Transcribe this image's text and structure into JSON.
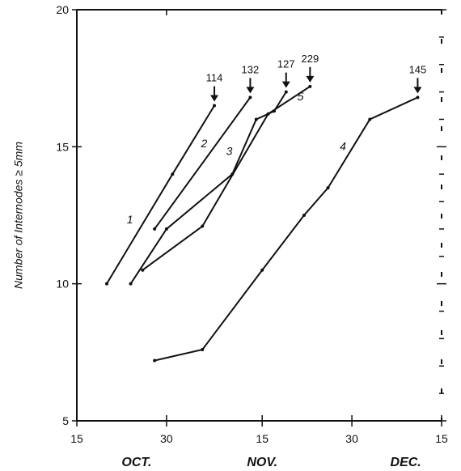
{
  "chart_data": {
    "type": "line",
    "ylabel": "Number of Internodes ≥ 5mm",
    "ylim": [
      5,
      20
    ],
    "xlim": [
      "Oct 15",
      "Dec 15"
    ],
    "y_ticks": [
      "5",
      "10",
      "15",
      "20"
    ],
    "x_ticks": [
      "15",
      "30",
      "15",
      "30",
      "15"
    ],
    "x_months": [
      "OCT.",
      "NOV.",
      "DEC."
    ],
    "series": [
      {
        "label": "1",
        "annotation": "114",
        "points": [
          [
            "Oct 20",
            10.0
          ],
          [
            "Oct 31",
            14.0
          ],
          [
            "Nov 7",
            16.5
          ]
        ]
      },
      {
        "label": "2",
        "annotation": "132",
        "points": [
          [
            "Oct 28",
            12.0
          ],
          [
            "Nov 13",
            16.8
          ]
        ]
      },
      {
        "label": "3",
        "annotation": "127",
        "points": [
          [
            "Oct 24",
            10.0
          ],
          [
            "Oct 30",
            12.0
          ],
          [
            "Nov 10",
            14.0
          ],
          [
            "Nov 14",
            16.0
          ],
          [
            "Nov 17",
            16.3
          ],
          [
            "Nov 19",
            17.0
          ]
        ]
      },
      {
        "label": "5",
        "annotation": "229",
        "points": [
          [
            "Oct 26",
            10.5
          ],
          [
            "Nov 5",
            12.1
          ],
          [
            "Nov 16",
            16.2
          ],
          [
            "Nov 23",
            17.2
          ]
        ]
      },
      {
        "label": "4",
        "annotation": "145",
        "points": [
          [
            "Oct 28",
            7.2
          ],
          [
            "Nov 5",
            7.6
          ],
          [
            "Nov 15",
            10.5
          ],
          [
            "Nov 22",
            12.5
          ],
          [
            "Nov 26",
            13.5
          ],
          [
            "Dec 3",
            16.0
          ],
          [
            "Dec 11",
            16.8
          ]
        ]
      }
    ]
  }
}
